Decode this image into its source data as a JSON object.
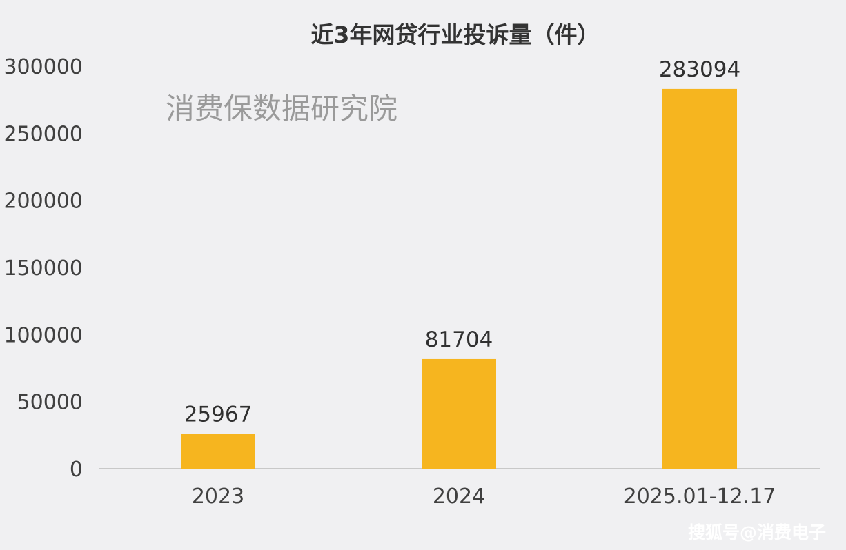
{
  "chart_data": {
    "type": "bar",
    "title": "近3年网贷行业投诉量（件）",
    "categories": [
      "2023",
      "2024",
      "2025.01-12.17"
    ],
    "values": [
      25967,
      81704,
      283094
    ],
    "data_labels": [
      "25967",
      "81704",
      "283094"
    ],
    "y_ticks": [
      "0",
      "50000",
      "100000",
      "150000",
      "200000",
      "250000",
      "300000"
    ],
    "ylim": [
      0,
      300000
    ],
    "xlabel": "",
    "ylabel": "",
    "grid": false,
    "legend": "none",
    "bar_color": "#f6b51f"
  },
  "watermark": "消费保数据研究院",
  "source_label": "搜狐号@消费电子"
}
